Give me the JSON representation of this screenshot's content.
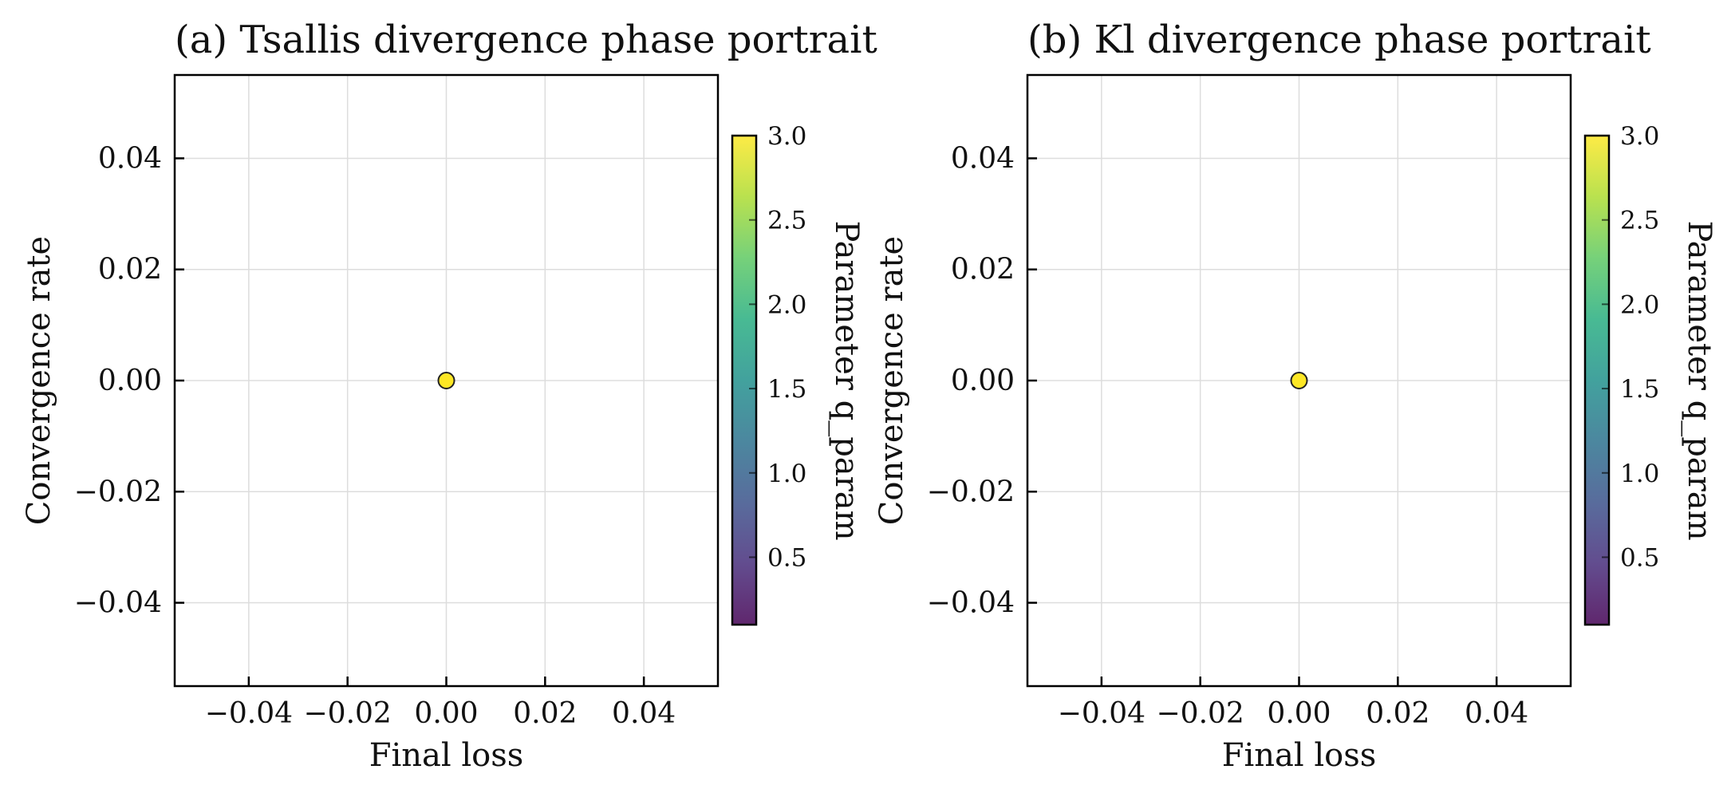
{
  "chart_data": [
    {
      "type": "scatter",
      "title": "(a) Tsallis divergence phase portrait",
      "xlabel": "Final loss",
      "ylabel": "Convergence rate",
      "xlim": [
        -0.055,
        0.055
      ],
      "ylim": [
        -0.055,
        0.055
      ],
      "x_ticks": [
        -0.04,
        -0.02,
        0.0,
        0.02,
        0.04
      ],
      "y_ticks": [
        -0.04,
        -0.02,
        0.0,
        0.02,
        0.04
      ],
      "x_tick_labels": [
        "−0.04",
        "−0.02",
        "0.00",
        "0.02",
        "0.04"
      ],
      "y_tick_labels": [
        "−0.04",
        "−0.02",
        "0.00",
        "0.02",
        "0.04"
      ],
      "grid": true,
      "points": [
        {
          "x": 0.0,
          "y": 0.0,
          "c": 3.0
        }
      ],
      "colorbar": {
        "label": "Parameter q_param",
        "colormap": "viridis",
        "range": [
          0.1,
          3.0
        ],
        "ticks": [
          0.5,
          1.0,
          1.5,
          2.0,
          2.5,
          3.0
        ],
        "tick_labels": [
          "0.5",
          "1.0",
          "1.5",
          "2.0",
          "2.5",
          "3.0"
        ]
      },
      "marker_color": "#FDE725"
    },
    {
      "type": "scatter",
      "title": "(b) Kl divergence phase portrait",
      "xlabel": "Final loss",
      "ylabel": "Convergence rate",
      "xlim": [
        -0.055,
        0.055
      ],
      "ylim": [
        -0.055,
        0.055
      ],
      "x_ticks": [
        -0.04,
        -0.02,
        0.0,
        0.02,
        0.04
      ],
      "y_ticks": [
        -0.04,
        -0.02,
        0.0,
        0.02,
        0.04
      ],
      "x_tick_labels": [
        "−0.04",
        "−0.02",
        "0.00",
        "0.02",
        "0.04"
      ],
      "y_tick_labels": [
        "−0.04",
        "−0.02",
        "0.00",
        "0.02",
        "0.04"
      ],
      "grid": true,
      "points": [
        {
          "x": 0.0,
          "y": 0.0,
          "c": 3.0
        }
      ],
      "colorbar": {
        "label": "Parameter q_param",
        "colormap": "viridis",
        "range": [
          0.1,
          3.0
        ],
        "ticks": [
          0.5,
          1.0,
          1.5,
          2.0,
          2.5,
          3.0
        ],
        "tick_labels": [
          "0.5",
          "1.0",
          "1.5",
          "2.0",
          "2.5",
          "3.0"
        ]
      },
      "marker_color": "#FDE725"
    }
  ],
  "colors": {
    "axis": "#000000",
    "grid": "#dddddd",
    "marker_edge": "#222222"
  }
}
